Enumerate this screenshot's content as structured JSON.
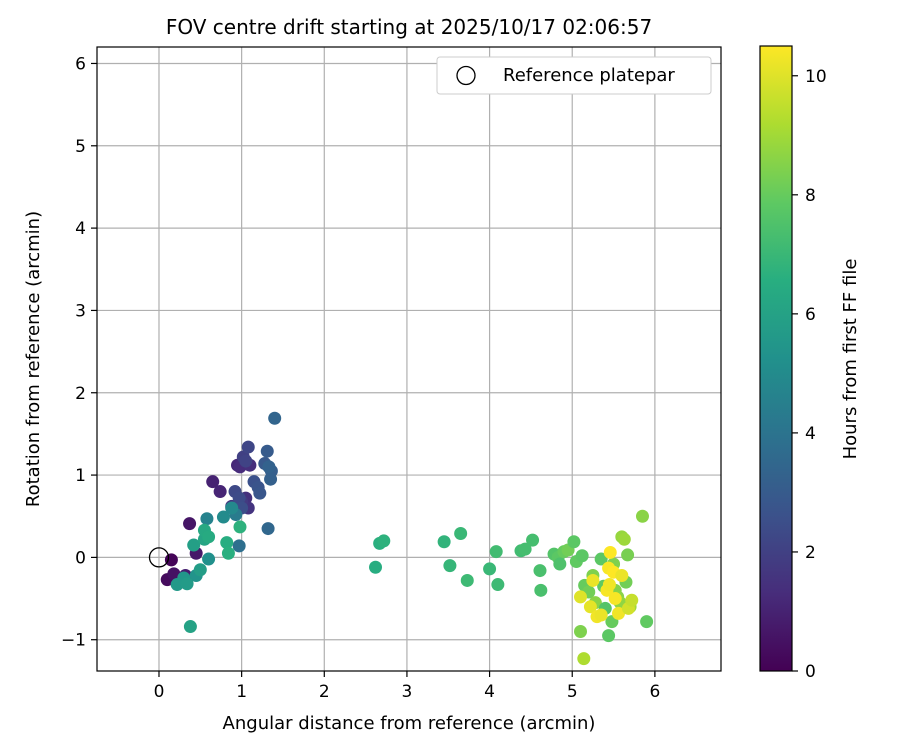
{
  "chart_data": {
    "type": "scatter",
    "title": "FOV centre drift starting at 2025/10/17 02:06:57",
    "xlabel": "Angular distance from reference (arcmin)",
    "ylabel": "Rotation from reference (arcmin)",
    "xlim": [
      -0.75,
      6.8
    ],
    "ylim": [
      -1.38,
      6.2
    ],
    "x_ticks": [
      0,
      1,
      2,
      3,
      4,
      5,
      6
    ],
    "y_ticks": [
      -1,
      0,
      1,
      2,
      3,
      4,
      5,
      6
    ],
    "x_tick_labels": [
      "0",
      "1",
      "2",
      "3",
      "4",
      "5",
      "6"
    ],
    "y_tick_labels": [
      "−1",
      "0",
      "1",
      "2",
      "3",
      "4",
      "5",
      "6"
    ],
    "grid": true,
    "legend": {
      "position": "top-right",
      "entries": [
        "Reference platepar"
      ]
    },
    "colorbar": {
      "label": "Hours from first FF file",
      "range": [
        0,
        10.5
      ],
      "ticks": [
        0,
        2,
        4,
        6,
        8,
        10
      ],
      "tick_labels": [
        "0",
        "2",
        "4",
        "6",
        "8",
        "10"
      ],
      "colormap": "viridis"
    },
    "reference_point": {
      "name": "Reference platepar",
      "x": 0,
      "y": 0
    },
    "series": [
      {
        "points": [
          {
            "x": 0.15,
            "y": -0.03,
            "c": 0.1
          },
          {
            "x": 0.1,
            "y": -0.27,
            "c": 0.3
          },
          {
            "x": 0.18,
            "y": -0.2,
            "c": 0.5
          },
          {
            "x": 0.37,
            "y": 0.41,
            "c": 0.6
          },
          {
            "x": 0.45,
            "y": 0.05,
            "c": 0.7
          },
          {
            "x": 0.32,
            "y": -0.22,
            "c": 0.9
          },
          {
            "x": 0.65,
            "y": 0.92,
            "c": 1.0
          },
          {
            "x": 0.74,
            "y": 0.8,
            "c": 1.1
          },
          {
            "x": 0.95,
            "y": 1.12,
            "c": 1.2
          },
          {
            "x": 0.98,
            "y": 1.1,
            "c": 1.3
          },
          {
            "x": 1.1,
            "y": 1.12,
            "c": 1.4
          },
          {
            "x": 1.05,
            "y": 0.72,
            "c": 1.5
          },
          {
            "x": 1.08,
            "y": 0.6,
            "c": 1.6
          },
          {
            "x": 0.88,
            "y": 0.62,
            "c": 1.7
          },
          {
            "x": 1.0,
            "y": 0.68,
            "c": 1.8
          },
          {
            "x": 1.02,
            "y": 1.22,
            "c": 2.0
          },
          {
            "x": 1.05,
            "y": 1.17,
            "c": 2.1
          },
          {
            "x": 1.08,
            "y": 1.34,
            "c": 2.2
          },
          {
            "x": 0.92,
            "y": 0.8,
            "c": 2.3
          },
          {
            "x": 0.97,
            "y": 0.72,
            "c": 2.4
          },
          {
            "x": 1.0,
            "y": 0.6,
            "c": 2.5
          },
          {
            "x": 1.15,
            "y": 0.92,
            "c": 2.6
          },
          {
            "x": 1.2,
            "y": 0.85,
            "c": 2.7
          },
          {
            "x": 1.22,
            "y": 0.78,
            "c": 2.8
          },
          {
            "x": 1.28,
            "y": 1.14,
            "c": 2.9
          },
          {
            "x": 1.31,
            "y": 1.29,
            "c": 3.0
          },
          {
            "x": 1.36,
            "y": 1.05,
            "c": 3.1
          },
          {
            "x": 1.35,
            "y": 0.95,
            "c": 3.2
          },
          {
            "x": 1.33,
            "y": 1.1,
            "c": 3.3
          },
          {
            "x": 1.4,
            "y": 1.69,
            "c": 3.4
          },
          {
            "x": 1.32,
            "y": 0.35,
            "c": 3.5
          },
          {
            "x": 0.97,
            "y": 0.14,
            "c": 3.8
          },
          {
            "x": 0.93,
            "y": 0.52,
            "c": 4.3
          },
          {
            "x": 0.58,
            "y": 0.47,
            "c": 4.6
          },
          {
            "x": 0.88,
            "y": 0.6,
            "c": 4.9
          },
          {
            "x": 0.78,
            "y": 0.49,
            "c": 5.0
          },
          {
            "x": 0.6,
            "y": -0.02,
            "c": 5.2
          },
          {
            "x": 0.45,
            "y": -0.22,
            "c": 5.4
          },
          {
            "x": 0.3,
            "y": -0.25,
            "c": 5.5
          },
          {
            "x": 0.22,
            "y": -0.33,
            "c": 5.6
          },
          {
            "x": 0.34,
            "y": -0.32,
            "c": 5.7
          },
          {
            "x": 0.5,
            "y": -0.15,
            "c": 5.8
          },
          {
            "x": 0.42,
            "y": 0.15,
            "c": 5.9
          },
          {
            "x": 0.38,
            "y": -0.84,
            "c": 6.0
          },
          {
            "x": 0.55,
            "y": 0.22,
            "c": 6.1
          },
          {
            "x": 0.55,
            "y": 0.33,
            "c": 6.3
          },
          {
            "x": 0.6,
            "y": 0.25,
            "c": 6.4
          },
          {
            "x": 0.82,
            "y": 0.18,
            "c": 6.5
          },
          {
            "x": 0.84,
            "y": 0.05,
            "c": 6.6
          },
          {
            "x": 0.98,
            "y": 0.37,
            "c": 6.7
          },
          {
            "x": 2.62,
            "y": -0.12,
            "c": 6.5
          },
          {
            "x": 2.67,
            "y": 0.17,
            "c": 6.6
          },
          {
            "x": 2.72,
            "y": 0.2,
            "c": 6.7
          },
          {
            "x": 3.45,
            "y": 0.19,
            "c": 6.8
          },
          {
            "x": 3.52,
            "y": -0.1,
            "c": 6.9
          },
          {
            "x": 3.65,
            "y": 0.29,
            "c": 7.0
          },
          {
            "x": 3.73,
            "y": -0.28,
            "c": 7.1
          },
          {
            "x": 4.0,
            "y": -0.14,
            "c": 7.0
          },
          {
            "x": 4.08,
            "y": 0.07,
            "c": 7.2
          },
          {
            "x": 4.1,
            "y": -0.33,
            "c": 7.1
          },
          {
            "x": 4.38,
            "y": 0.08,
            "c": 7.2
          },
          {
            "x": 4.43,
            "y": 0.1,
            "c": 7.3
          },
          {
            "x": 4.52,
            "y": 0.21,
            "c": 7.3
          },
          {
            "x": 4.61,
            "y": -0.16,
            "c": 7.4
          },
          {
            "x": 4.62,
            "y": -0.4,
            "c": 7.4
          },
          {
            "x": 4.78,
            "y": 0.04,
            "c": 7.6
          },
          {
            "x": 4.83,
            "y": 0.0,
            "c": 7.8
          },
          {
            "x": 4.85,
            "y": -0.08,
            "c": 7.5
          },
          {
            "x": 4.9,
            "y": 0.07,
            "c": 8.0
          },
          {
            "x": 4.95,
            "y": 0.09,
            "c": 8.2
          },
          {
            "x": 5.02,
            "y": 0.19,
            "c": 7.8
          },
          {
            "x": 5.05,
            "y": -0.05,
            "c": 7.9
          },
          {
            "x": 5.12,
            "y": 0.02,
            "c": 7.8
          },
          {
            "x": 5.15,
            "y": -0.34,
            "c": 8.0
          },
          {
            "x": 5.2,
            "y": -0.42,
            "c": 8.2
          },
          {
            "x": 5.25,
            "y": -0.22,
            "c": 8.4
          },
          {
            "x": 5.28,
            "y": -0.55,
            "c": 8.6
          },
          {
            "x": 5.35,
            "y": -0.02,
            "c": 7.8
          },
          {
            "x": 5.38,
            "y": -0.35,
            "c": 7.9
          },
          {
            "x": 5.4,
            "y": -0.62,
            "c": 7.6
          },
          {
            "x": 5.44,
            "y": -0.95,
            "c": 7.8
          },
          {
            "x": 5.48,
            "y": -0.78,
            "c": 8.0
          },
          {
            "x": 5.1,
            "y": -0.9,
            "c": 8.4
          },
          {
            "x": 5.14,
            "y": -1.23,
            "c": 9.2
          },
          {
            "x": 5.5,
            "y": -0.08,
            "c": 8.4
          },
          {
            "x": 5.52,
            "y": -0.4,
            "c": 8.5
          },
          {
            "x": 5.55,
            "y": -0.48,
            "c": 8.6
          },
          {
            "x": 5.58,
            "y": -0.55,
            "c": 8.7
          },
          {
            "x": 5.6,
            "y": 0.25,
            "c": 8.8
          },
          {
            "x": 5.63,
            "y": 0.22,
            "c": 8.9
          },
          {
            "x": 5.65,
            "y": -0.3,
            "c": 8.2
          },
          {
            "x": 5.67,
            "y": 0.03,
            "c": 8.3
          },
          {
            "x": 5.7,
            "y": -0.6,
            "c": 9.0
          },
          {
            "x": 5.85,
            "y": 0.5,
            "c": 8.6
          },
          {
            "x": 5.9,
            "y": -0.78,
            "c": 7.9
          },
          {
            "x": 5.1,
            "y": -0.48,
            "c": 10.0
          },
          {
            "x": 5.22,
            "y": -0.6,
            "c": 10.1
          },
          {
            "x": 5.25,
            "y": -0.28,
            "c": 10.2
          },
          {
            "x": 5.3,
            "y": -0.72,
            "c": 10.3
          },
          {
            "x": 5.35,
            "y": -0.7,
            "c": 10.2
          },
          {
            "x": 5.42,
            "y": -0.4,
            "c": 10.4
          },
          {
            "x": 5.45,
            "y": -0.33,
            "c": 10.3
          },
          {
            "x": 5.44,
            "y": -0.13,
            "c": 10.4
          },
          {
            "x": 5.46,
            "y": 0.06,
            "c": 10.5
          },
          {
            "x": 5.5,
            "y": -0.18,
            "c": 10.5
          },
          {
            "x": 5.52,
            "y": -0.5,
            "c": 10.4
          },
          {
            "x": 5.56,
            "y": -0.68,
            "c": 10.3
          },
          {
            "x": 5.6,
            "y": -0.22,
            "c": 10.2
          },
          {
            "x": 5.68,
            "y": -0.62,
            "c": 9.8
          },
          {
            "x": 5.72,
            "y": -0.52,
            "c": 9.6
          }
        ]
      }
    ]
  }
}
